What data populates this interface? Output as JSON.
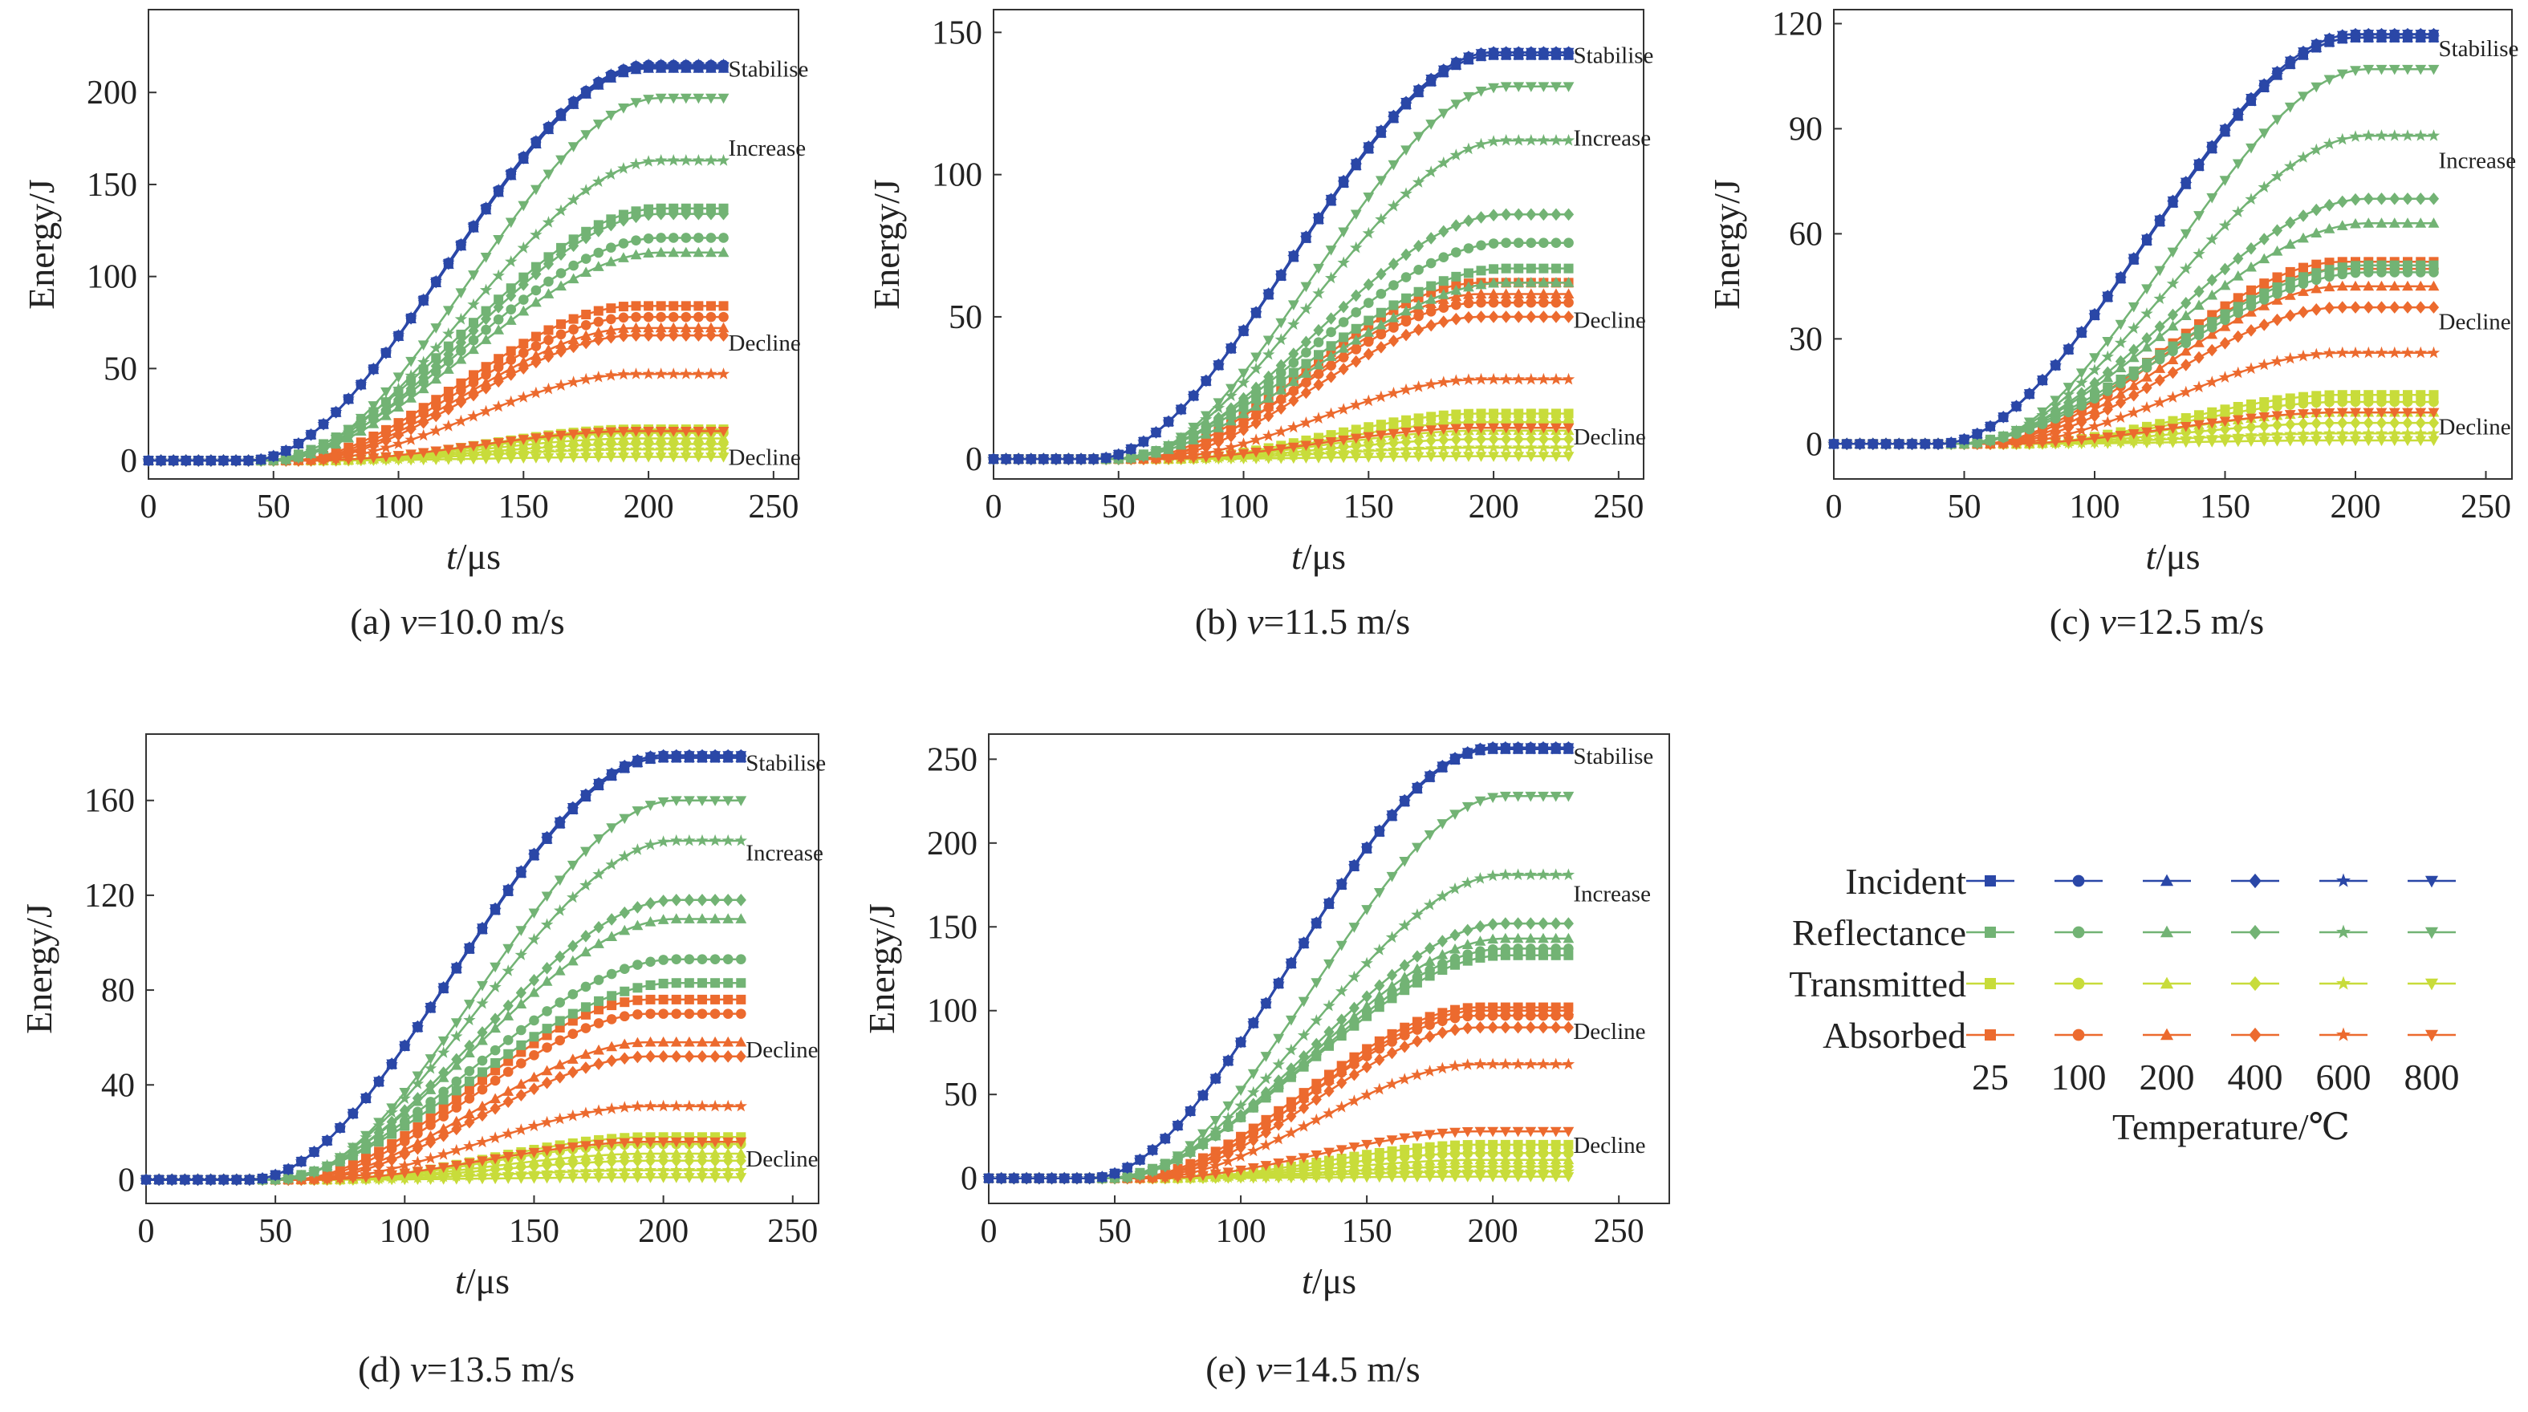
{
  "figure": {
    "x_label_var": "t",
    "x_label_unit": "/μs",
    "y_label": "Energy/J",
    "x_ticks": [
      "0",
      "50",
      "100",
      "150",
      "200",
      "250"
    ]
  },
  "colors": {
    "Incident": "#2a47a7",
    "Reflectance": "#72b374",
    "Transmitted": "#c8dc3a",
    "Absorbed": "#ec6a2e"
  },
  "legend": {
    "rows": [
      "Incident",
      "Reflectance",
      "Transmitted",
      "Absorbed"
    ],
    "temperatures": [
      "25",
      "100",
      "200",
      "400",
      "600",
      "800"
    ],
    "markers": [
      "square",
      "circle",
      "triangle-up",
      "diamond",
      "star",
      "triangle-down"
    ],
    "title": "Temperature/℃"
  },
  "chart_data": [
    {
      "type": "line",
      "caption_prefix": "(a) ",
      "caption_var": "v",
      "caption_value": "=10.0 m/s",
      "xlim": [
        0,
        260
      ],
      "ylim": [
        -10,
        245
      ],
      "y_ticks": [
        "0",
        "50",
        "100",
        "150",
        "200"
      ],
      "t_end": 230,
      "annotations": [
        {
          "text": "Stabilise",
          "y": 213
        },
        {
          "text": "Increase",
          "y": 170
        },
        {
          "text": "Decline",
          "y": 64
        },
        {
          "text": "Decline",
          "y": 2
        }
      ],
      "final_values": {
        "Incident": [
          214,
          215,
          213,
          214,
          215,
          214
        ],
        "Reflectance": [
          137,
          121,
          113,
          134,
          163,
          197
        ],
        "Transmitted": [
          17,
          15,
          12,
          9,
          6,
          2
        ],
        "Absorbed": [
          84,
          78,
          72,
          68,
          47,
          16
        ]
      }
    },
    {
      "type": "line",
      "caption_prefix": "(b) ",
      "caption_var": "v",
      "caption_value": "=11.5 m/s",
      "xlim": [
        0,
        260
      ],
      "ylim": [
        -7,
        158
      ],
      "y_ticks": [
        "0",
        "50",
        "100",
        "150"
      ],
      "t_end": 230,
      "annotations": [
        {
          "text": "Stabilise",
          "y": 142
        },
        {
          "text": "Increase",
          "y": 113
        },
        {
          "text": "Decline",
          "y": 49
        },
        {
          "text": "Decline",
          "y": 8
        }
      ],
      "final_values": {
        "Incident": [
          142,
          143,
          142,
          143,
          142,
          143
        ],
        "Reflectance": [
          67,
          76,
          62,
          86,
          112,
          131
        ],
        "Transmitted": [
          16,
          13,
          10,
          7,
          4,
          1
        ],
        "Absorbed": [
          62,
          55,
          58,
          50,
          28,
          11
        ]
      }
    },
    {
      "type": "line",
      "caption_prefix": "(c) ",
      "caption_var": "v",
      "caption_value": "=12.5 m/s",
      "xlim": [
        0,
        260
      ],
      "ylim": [
        -10,
        124
      ],
      "y_ticks": [
        "0",
        "30",
        "60",
        "90",
        "120"
      ],
      "t_end": 230,
      "annotations": [
        {
          "text": "Stabilise",
          "y": 113
        },
        {
          "text": "Increase",
          "y": 81
        },
        {
          "text": "Decline",
          "y": 35
        },
        {
          "text": "Decline",
          "y": 5
        }
      ],
      "final_values": {
        "Incident": [
          116,
          117,
          116,
          117,
          116,
          117
        ],
        "Reflectance": [
          51,
          49,
          63,
          70,
          88,
          107
        ],
        "Transmitted": [
          14,
          12,
          9,
          6,
          3,
          1
        ],
        "Absorbed": [
          52,
          50,
          45,
          39,
          26,
          9
        ]
      }
    },
    {
      "type": "line",
      "caption_prefix": "(d) ",
      "caption_var": "v",
      "caption_value": "=13.5 m/s",
      "xlim": [
        0,
        260
      ],
      "ylim": [
        -10,
        188
      ],
      "y_ticks": [
        "0",
        "40",
        "80",
        "120",
        "160"
      ],
      "t_end": 230,
      "annotations": [
        {
          "text": "Stabilise",
          "y": 176
        },
        {
          "text": "Increase",
          "y": 138
        },
        {
          "text": "Decline",
          "y": 55
        },
        {
          "text": "Decline",
          "y": 9
        }
      ],
      "final_values": {
        "Incident": [
          178,
          179,
          178,
          179,
          178,
          179
        ],
        "Reflectance": [
          83,
          93,
          110,
          118,
          143,
          160
        ],
        "Transmitted": [
          18,
          15,
          11,
          8,
          4,
          1
        ],
        "Absorbed": [
          76,
          70,
          58,
          52,
          31,
          16
        ]
      }
    },
    {
      "type": "line",
      "caption_prefix": "(e) ",
      "caption_var": "v",
      "caption_value": "=14.5 m/s",
      "xlim": [
        0,
        270
      ],
      "ylim": [
        -15,
        265
      ],
      "y_ticks": [
        "0",
        "50",
        "100",
        "150",
        "200",
        "250"
      ],
      "t_end": 230,
      "annotations": [
        {
          "text": "Stabilise",
          "y": 252
        },
        {
          "text": "Increase",
          "y": 170
        },
        {
          "text": "Decline",
          "y": 88
        },
        {
          "text": "Decline",
          "y": 20
        }
      ],
      "final_values": {
        "Incident": [
          256,
          257,
          256,
          257,
          256,
          257
        ],
        "Reflectance": [
          133,
          137,
          143,
          152,
          181,
          228
        ],
        "Transmitted": [
          20,
          15,
          11,
          7,
          4,
          1
        ],
        "Absorbed": [
          102,
          97,
          100,
          90,
          68,
          28
        ]
      }
    }
  ]
}
